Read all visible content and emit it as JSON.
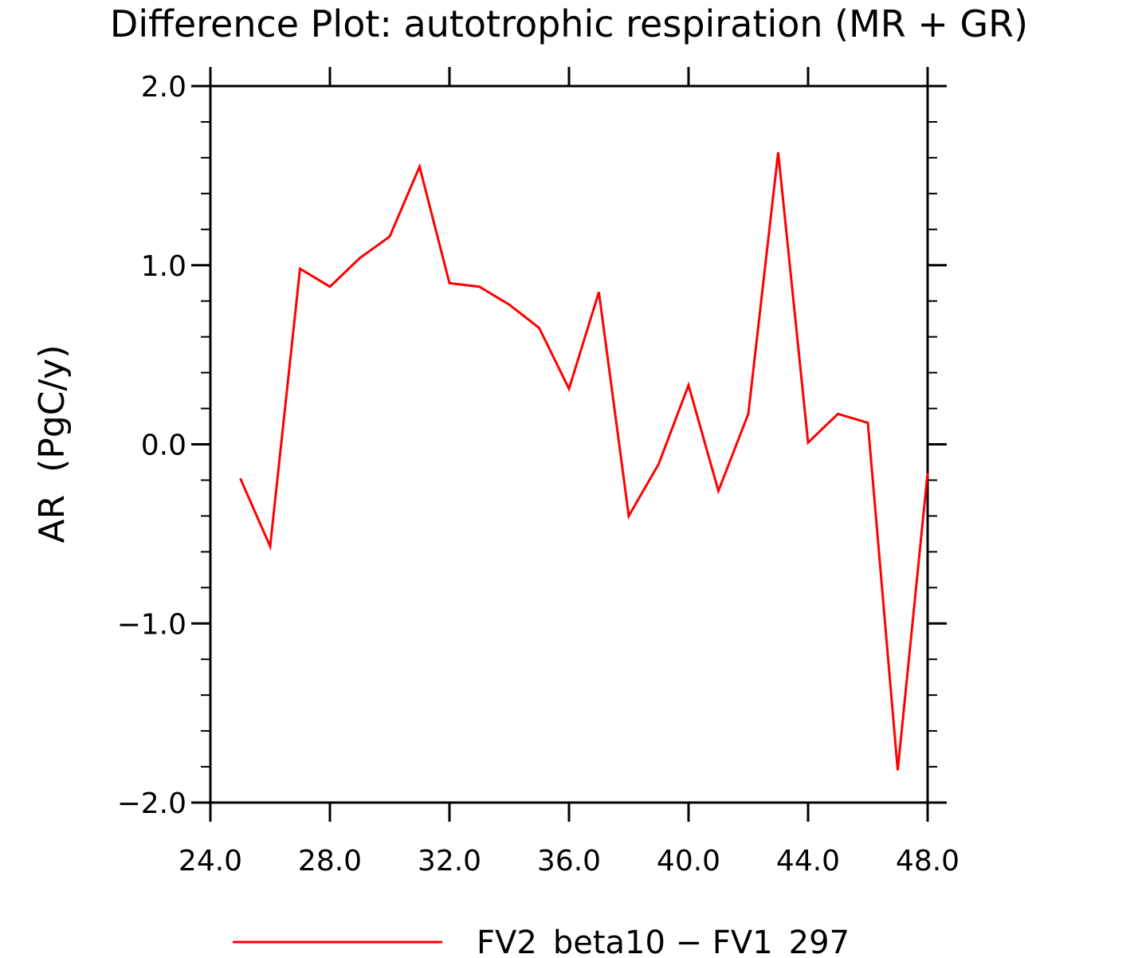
{
  "chart_data": {
    "type": "line",
    "title": "Difference Plot: autotrophic respiration (MR + GR)",
    "xlabel": "",
    "ylabel": "AR (PgC/y)",
    "xlim": [
      24,
      48
    ],
    "ylim": [
      -2,
      2
    ],
    "x_ticks": [
      "24.0",
      "28.0",
      "32.0",
      "36.0",
      "40.0",
      "44.0",
      "48.0"
    ],
    "y_ticks": [
      "2.0",
      "1.0",
      "0.0",
      "−1.0",
      "−2.0"
    ],
    "x_tick_values": [
      24,
      28,
      32,
      36,
      40,
      44,
      48
    ],
    "y_tick_values": [
      2,
      1,
      0,
      -1,
      -2
    ],
    "grid": false,
    "legend_position": "bottom-center",
    "series": [
      {
        "name": "FV2_beta10 − FV1_297",
        "color": "#ff0000",
        "x": [
          25,
          26,
          27,
          28,
          29,
          30,
          31,
          32,
          33,
          34,
          35,
          36,
          37,
          38,
          39,
          40,
          41,
          42,
          43,
          44,
          45,
          46,
          47,
          48
        ],
        "y": [
          -0.19,
          -0.57,
          0.98,
          0.88,
          1.04,
          1.16,
          1.55,
          0.9,
          0.88,
          0.78,
          0.65,
          0.31,
          0.85,
          -0.4,
          -0.11,
          0.33,
          -0.26,
          0.17,
          1.63,
          0.01,
          0.17,
          0.12,
          -1.82,
          -0.16
        ]
      }
    ]
  }
}
